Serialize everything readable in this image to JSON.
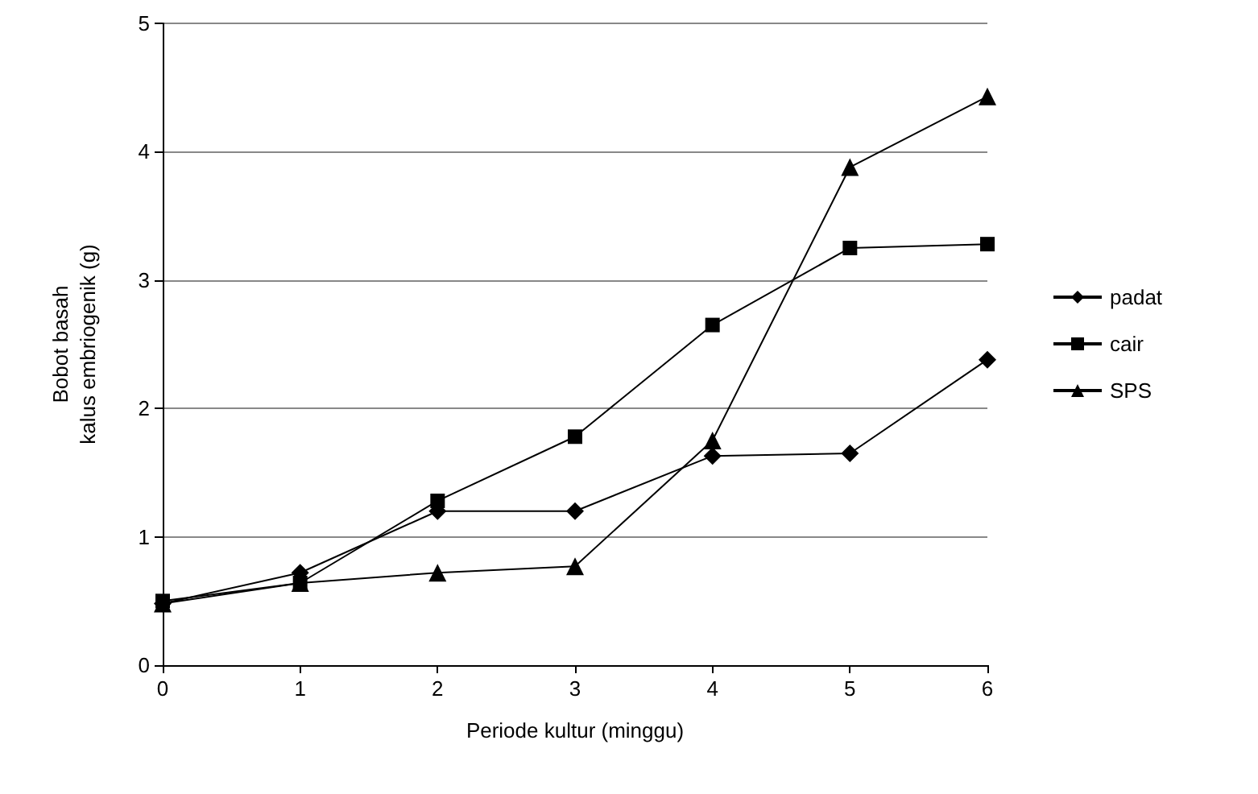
{
  "chart_data": {
    "type": "line",
    "xlabel": "Periode kultur (minggu)",
    "ylabel": "Bobot basah\nkalus embriogenik (g)",
    "x": [
      0,
      1,
      2,
      3,
      4,
      5,
      6
    ],
    "series": [
      {
        "name": "padat",
        "color": "#000000",
        "marker": "diamond",
        "values": [
          0.48,
          0.72,
          1.2,
          1.2,
          1.63,
          1.65,
          2.38
        ]
      },
      {
        "name": "cair",
        "color": "#000000",
        "marker": "square",
        "values": [
          0.5,
          0.64,
          1.28,
          1.78,
          2.65,
          3.25,
          3.28
        ]
      },
      {
        "name": "SPS",
        "color": "#000000",
        "marker": "triangle",
        "values": [
          0.48,
          0.64,
          0.72,
          0.77,
          1.75,
          3.88,
          4.43
        ]
      }
    ],
    "xlim": [
      0,
      6
    ],
    "xticks": [
      0,
      1,
      2,
      3,
      4,
      5,
      6
    ],
    "ylim": [
      0,
      5
    ],
    "yticks": [
      0,
      1,
      2,
      3,
      4,
      5
    ],
    "grid": "y",
    "legend": "right",
    "line_style": "solid"
  }
}
